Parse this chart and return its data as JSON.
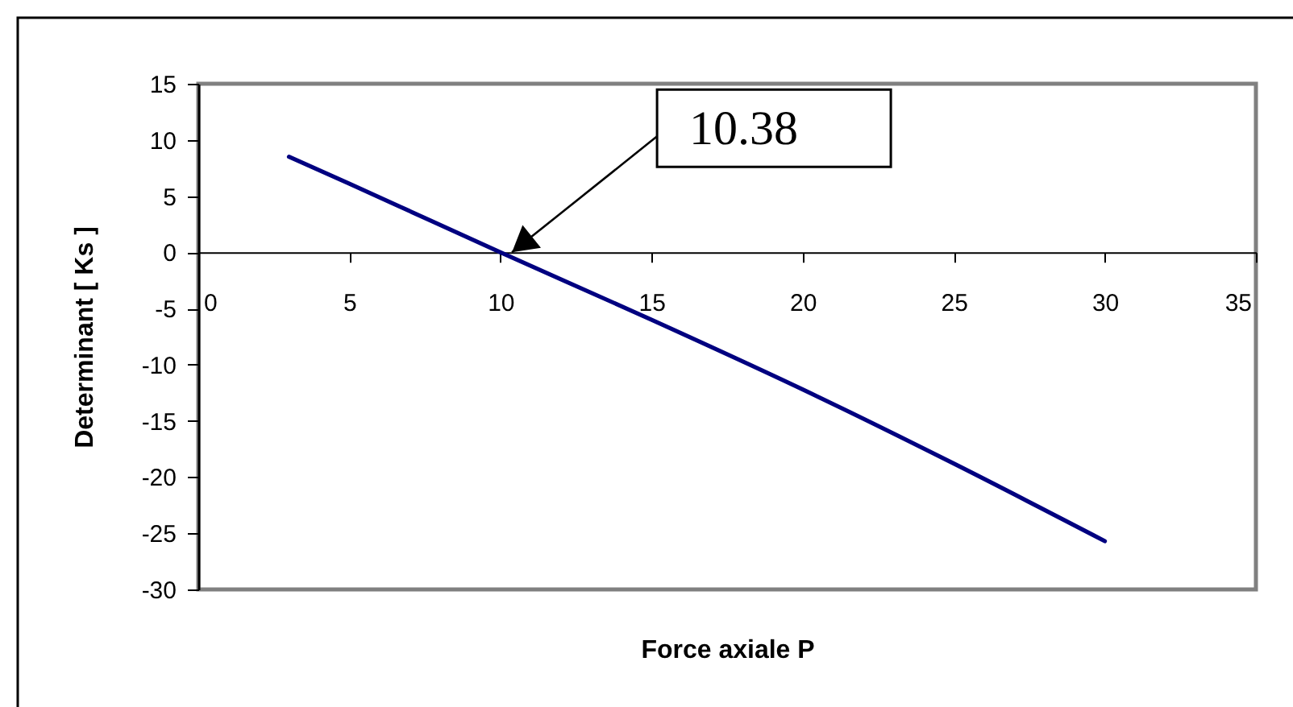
{
  "chart_data": {
    "type": "line",
    "xlabel": "Force axiale P",
    "ylabel": "Determinant [ Ks ]",
    "x": [
      3,
      5,
      10,
      15,
      20,
      25,
      30
    ],
    "series": [
      {
        "color": "#000080",
        "values": [
          8.5,
          6.1,
          0,
          -6.0,
          -12.2,
          -18.8,
          -25.7
        ]
      }
    ],
    "xlim": [
      0,
      35
    ],
    "ylim": [
      -30,
      15
    ],
    "xticks": [
      0,
      5,
      10,
      15,
      20,
      25,
      30,
      35
    ],
    "yticks": [
      -30,
      -25,
      -20,
      -15,
      -10,
      -5,
      0,
      5,
      10,
      15
    ],
    "annotations": [
      {
        "text": "10.38",
        "x": 10.38,
        "y": 0
      }
    ],
    "line_style": "solid"
  }
}
